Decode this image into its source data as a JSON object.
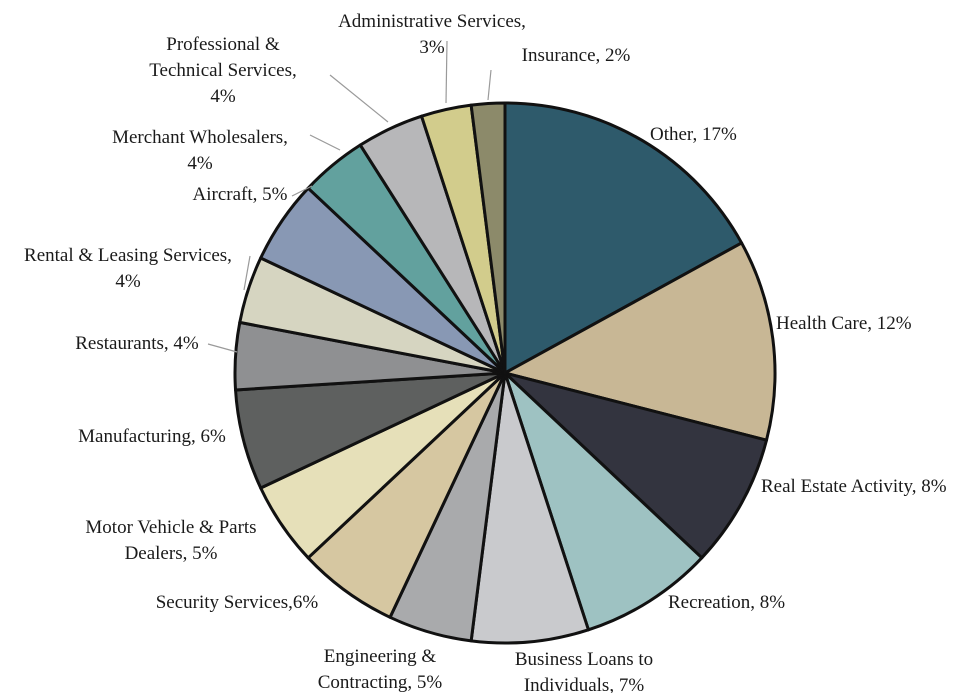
{
  "chart_data": {
    "type": "pie",
    "title": "",
    "slices": [
      {
        "label": "Other, 17%",
        "value": 17,
        "color": "#2e5a6b"
      },
      {
        "label": "Health Care, 12%",
        "value": 12,
        "color": "#c8b795"
      },
      {
        "label": "Real Estate Activity, 8%",
        "value": 8,
        "color": "#33343f"
      },
      {
        "label": "Recreation, 8%",
        "value": 8,
        "color": "#9ec2c2"
      },
      {
        "label": "Business Loans to Individuals, 7%",
        "value": 7,
        "color": "#c9cacd"
      },
      {
        "label": "Engineering & Contracting, 5%",
        "value": 5,
        "color": "#a9aaac"
      },
      {
        "label": "Security Services,6%",
        "value": 6,
        "color": "#d6c7a1"
      },
      {
        "label": "Motor Vehicle & Parts Dealers, 5%",
        "value": 5,
        "color": "#e6e0b9"
      },
      {
        "label": "Manufacturing, 6%",
        "value": 6,
        "color": "#5e605f"
      },
      {
        "label": "Restaurants, 4%",
        "value": 4,
        "color": "#8f9092"
      },
      {
        "label": "Rental & Leasing Services, 4%",
        "value": 4,
        "color": "#d6d5c1"
      },
      {
        "label": "Aircraft, 5%",
        "value": 5,
        "color": "#8898b4"
      },
      {
        "label": "Merchant Wholesalers, 4%",
        "value": 4,
        "color": "#62a19e"
      },
      {
        "label": "Professional & Technical Services, 4%",
        "value": 4,
        "color": "#b7b7b9"
      },
      {
        "label": "Administrative Services, 3%",
        "value": 3,
        "color": "#d2cc8c"
      },
      {
        "label": "Insurance, 2%",
        "value": 2,
        "color": "#8c8a6a"
      }
    ],
    "label_lines": [
      [
        "Other,  17%"
      ],
      [
        "Health Care, 12%"
      ],
      [
        "Real Estate Activity, 8%"
      ],
      [
        "Recreation, 8%"
      ],
      [
        "Business Loans to",
        "Individuals, 7%"
      ],
      [
        "Engineering &",
        "Contracting, 5%"
      ],
      [
        "Security Services,6%"
      ],
      [
        "Motor Vehicle & Parts",
        "Dealers, 5%"
      ],
      [
        "Manufacturing, 6%"
      ],
      [
        "Restaurants, 4%"
      ],
      [
        "Rental & Leasing Services,",
        "4%"
      ],
      [
        "Aircraft, 5%"
      ],
      [
        "Merchant Wholesalers,",
        "4%"
      ],
      [
        "Professional &",
        "Technical Services,",
        "4%"
      ],
      [
        "Administrative Services,",
        "3%"
      ],
      [
        "Insurance, 2%"
      ]
    ],
    "legend": "none",
    "start": "12 o'clock, clockwise"
  }
}
